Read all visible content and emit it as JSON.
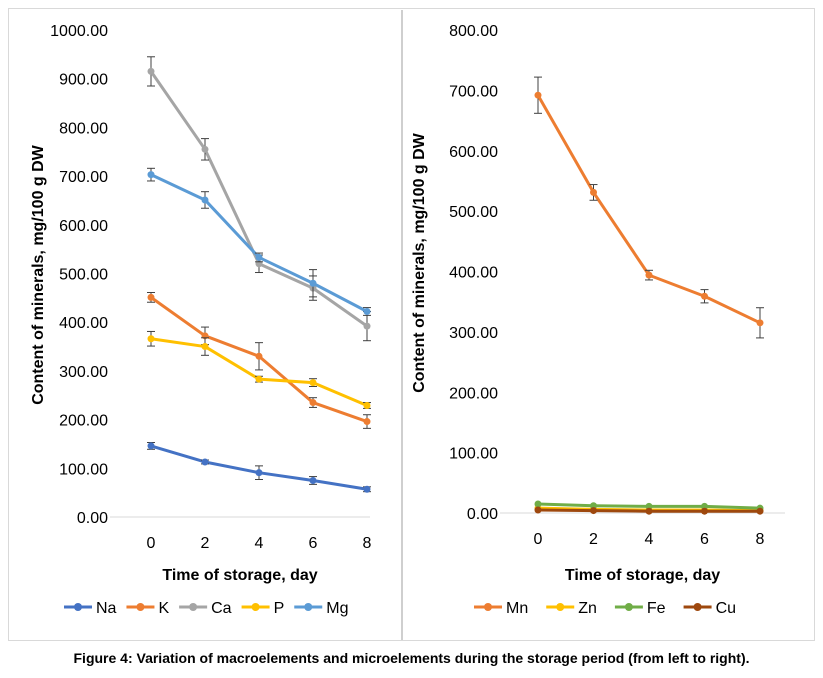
{
  "caption": "Figure 4: Variation of macroelements and microelements during the storage period (from left to right).",
  "chart_data": [
    {
      "type": "line",
      "title": "",
      "xlabel": "Time of storage, day",
      "ylabel": "Content of minerals, mg/100 g DW",
      "x": [
        0,
        2,
        4,
        6,
        8
      ],
      "xlim": [
        0,
        8
      ],
      "ylim": [
        0,
        1000
      ],
      "y_ticks": [
        "0.00",
        "100.00",
        "200.00",
        "300.00",
        "400.00",
        "500.00",
        "600.00",
        "700.00",
        "800.00",
        "900.00",
        "1000.00"
      ],
      "x_ticks": [
        "0",
        "2",
        "4",
        "6",
        "8"
      ],
      "grid": false,
      "legend_position": "bottom",
      "series": [
        {
          "name": "Na",
          "color": "#4472C4",
          "values": [
            146,
            113,
            91,
            75,
            57
          ],
          "errors": [
            7,
            4,
            14,
            8,
            5
          ]
        },
        {
          "name": "K",
          "color": "#ED7D31",
          "values": [
            451,
            372,
            330,
            235,
            196
          ],
          "errors": [
            10,
            18,
            28,
            10,
            14
          ]
        },
        {
          "name": "Ca",
          "color": "#A5A5A5",
          "values": [
            915,
            755,
            520,
            470,
            392
          ],
          "errors": [
            30,
            22,
            18,
            25,
            30
          ]
        },
        {
          "name": "P",
          "color": "#FFC000",
          "values": [
            366,
            350,
            283,
            276,
            229
          ],
          "errors": [
            15,
            18,
            6,
            8,
            6
          ]
        },
        {
          "name": "Mg",
          "color": "#5B9BD5",
          "values": [
            703,
            651,
            533,
            480,
            422
          ],
          "errors": [
            13,
            17,
            9,
            28,
            8
          ]
        }
      ]
    },
    {
      "type": "line",
      "title": "",
      "xlabel": "Time of storage, day",
      "ylabel": "Content of minerals, mg/100 g DW",
      "x": [
        0,
        2,
        4,
        6,
        8
      ],
      "xlim": [
        0,
        8
      ],
      "ylim": [
        0,
        800
      ],
      "y_ticks": [
        "0.00",
        "100.00",
        "200.00",
        "300.00",
        "400.00",
        "500.00",
        "600.00",
        "700.00",
        "800.00"
      ],
      "x_ticks": [
        "0",
        "2",
        "4",
        "6",
        "8"
      ],
      "grid": false,
      "legend_position": "bottom",
      "series": [
        {
          "name": "Mn",
          "color": "#ED7D31",
          "values": [
            692,
            531,
            394,
            359,
            315
          ],
          "errors": [
            30,
            13,
            8,
            11,
            25
          ]
        },
        {
          "name": "Zn",
          "color": "#FFC000",
          "values": [
            8,
            6,
            5,
            5,
            4
          ],
          "errors": [
            0,
            0,
            0,
            0,
            0
          ]
        },
        {
          "name": "Fe",
          "color": "#70AD47",
          "values": [
            15,
            12,
            11,
            11,
            8
          ],
          "errors": [
            0,
            0,
            0,
            0,
            0
          ]
        },
        {
          "name": "Cu",
          "color": "#9E480E",
          "values": [
            5,
            4,
            3,
            3,
            3
          ],
          "errors": [
            0,
            0,
            0,
            0,
            0
          ]
        }
      ]
    }
  ]
}
